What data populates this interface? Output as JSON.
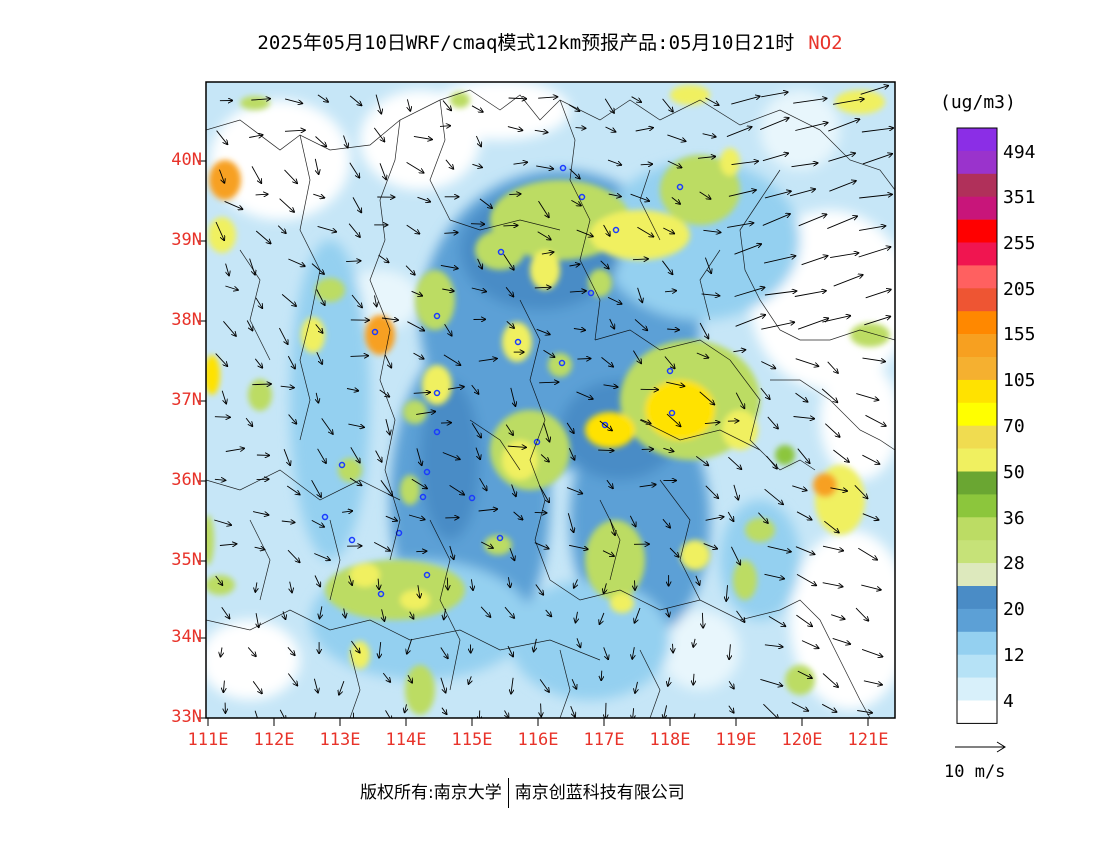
{
  "title": {
    "main": "2025年05月10日WRF/cmaq模式12km预报产品:05月10日21时",
    "species": "NO2"
  },
  "colorbar": {
    "unit": "(ug/m3)",
    "labels": [
      "494",
      "351",
      "255",
      "205",
      "155",
      "105",
      "70",
      "50",
      "36",
      "28",
      "20",
      "12",
      "4"
    ],
    "colors_top_to_bottom": [
      "#8b2ee6",
      "#9a33cc",
      "#b0305a",
      "#c8157a",
      "#ff0000",
      "#f01550",
      "#ff6060",
      "#ee5533",
      "#ff8800",
      "#f7a020",
      "#f5b030",
      "#ffe200",
      "#ffff00",
      "#f0dc50",
      "#f0f060",
      "#6aa632",
      "#8cc63c",
      "#bcdc64",
      "#c6e278",
      "#dde9bd",
      "#4a8cc6",
      "#5ca0d6",
      "#94d0f0",
      "#b6e2f6",
      "#d8f0fa",
      "#ffffff"
    ]
  },
  "axes": {
    "lat_labels": [
      "40N",
      "39N",
      "38N",
      "37N",
      "36N",
      "35N",
      "34N",
      "33N"
    ],
    "lon_labels": [
      "111E",
      "112E",
      "113E",
      "114E",
      "115E",
      "116E",
      "117E",
      "118E",
      "119E",
      "120E",
      "121E"
    ]
  },
  "wind_reference": {
    "label": "10 m/s"
  },
  "footer": {
    "left": "版权所有:南京大学",
    "right": "南京创蓝科技有限公司"
  },
  "colors": {
    "accent_red": "#e8332a"
  }
}
